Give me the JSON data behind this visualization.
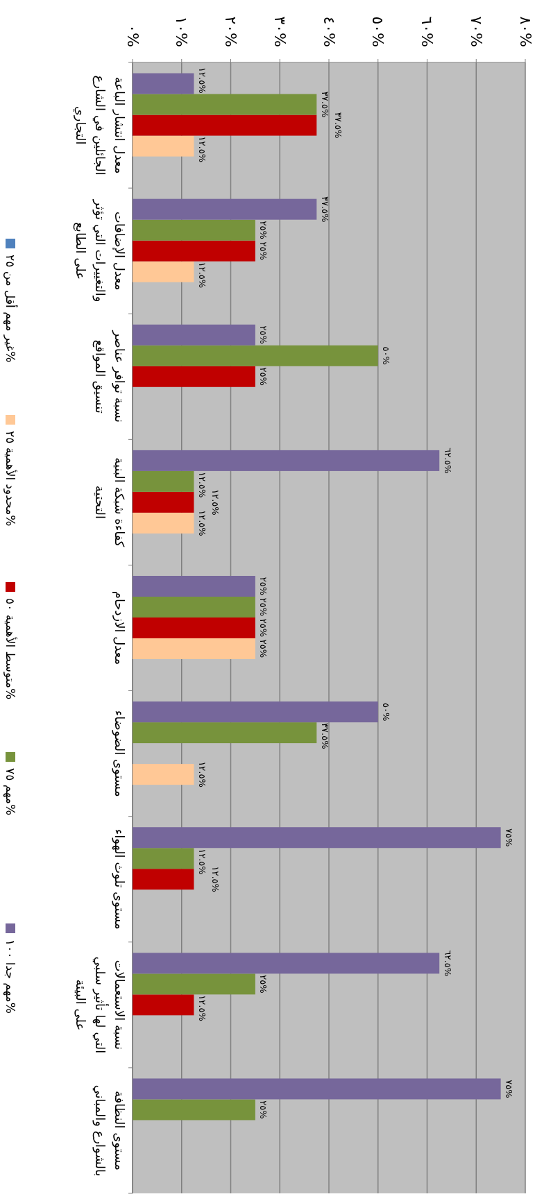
{
  "chart_data": {
    "type": "bar",
    "orientation": "horizontal",
    "categories": [
      "معدل انتشار الباعة\nالجائلين في الشارع\nالتجاري",
      "معدل الإضافات\nوالتغييرات التي تؤثر\nعلى الطابع",
      "نسبة توافر عناصر\nتنسيق المواقع",
      "كفاءة شبكة البنية\nالتحتية",
      "معدل الازدحام",
      "مستوى الضوضاء",
      "مستوى تلوث الهواء",
      "نسبة الاستعمالات\nالتي لها تأثير سلبي\nعلى البيئة",
      "مستوى النظافة\nبالشوارع والمباني"
    ],
    "series": [
      {
        "name": "غير مهم أقل من ٢٥%",
        "color": "#4f81bd",
        "values": [
          0,
          0,
          0,
          0,
          0,
          0,
          0,
          0,
          0
        ],
        "value_labels": [
          null,
          null,
          null,
          null,
          null,
          null,
          null,
          null,
          null
        ]
      },
      {
        "name": "محدود الأهمية ٢٥%",
        "color": "#ffc896",
        "values": [
          12.5,
          12.5,
          0,
          12.5,
          25,
          12.5,
          0,
          0,
          0
        ],
        "value_labels": [
          "١٢.٥%",
          "١٢.٥%",
          null,
          "١٢.٥%",
          "٢٥%",
          "١٢.٥%",
          null,
          null,
          null
        ]
      },
      {
        "name": "متوسط الأهمية ٥٠%",
        "color": "#c00000",
        "values": [
          37.5,
          25,
          25,
          12.5,
          25,
          0,
          12.5,
          12.5,
          0
        ],
        "value_labels": [
          "٣٧.٥%",
          "٢٥%",
          "٢٥%",
          "١٢.٥%",
          "٢٥%",
          null,
          "١٢.٥%",
          "١٢.٥%",
          null
        ]
      },
      {
        "name": "مهم ٧٥%",
        "color": "#77933c",
        "values": [
          37.5,
          25,
          50,
          12.5,
          25,
          37.5,
          12.5,
          25,
          25
        ],
        "value_labels": [
          "٣٧.٥%",
          "٢٥%",
          "٥٠%",
          "١٢.٥%",
          "٢٥%",
          "٣٧.٥%",
          "١٢.٥%",
          "٢٥%",
          "٢٥%"
        ]
      },
      {
        "name": "مهم جدا ١٠٠%",
        "color": "#76679b",
        "values": [
          12.5,
          37.5,
          25,
          62.5,
          25,
          50,
          75,
          62.5,
          75
        ],
        "value_labels": [
          "١٢.٥%",
          "٣٧.٥%",
          "٢٥%",
          "٦٢.٥%",
          "٢٥%",
          "٥٠%",
          "٧٥%",
          "٦٢.٥%",
          "٧٥%"
        ]
      }
    ],
    "xlim": [
      0,
      80
    ],
    "xticks": [
      {
        "value": 0,
        "label": "٠%"
      },
      {
        "value": 10,
        "label": "١٠%"
      },
      {
        "value": 20,
        "label": "٢٠%"
      },
      {
        "value": 30,
        "label": "٣٠%"
      },
      {
        "value": 40,
        "label": "٤٠%"
      },
      {
        "value": 50,
        "label": "٥٠%"
      },
      {
        "value": 60,
        "label": "٦٠%"
      },
      {
        "value": 70,
        "label": "٧٠%"
      },
      {
        "value": 80,
        "label": "٨٠%"
      }
    ],
    "grid": "x",
    "legend": "left"
  }
}
